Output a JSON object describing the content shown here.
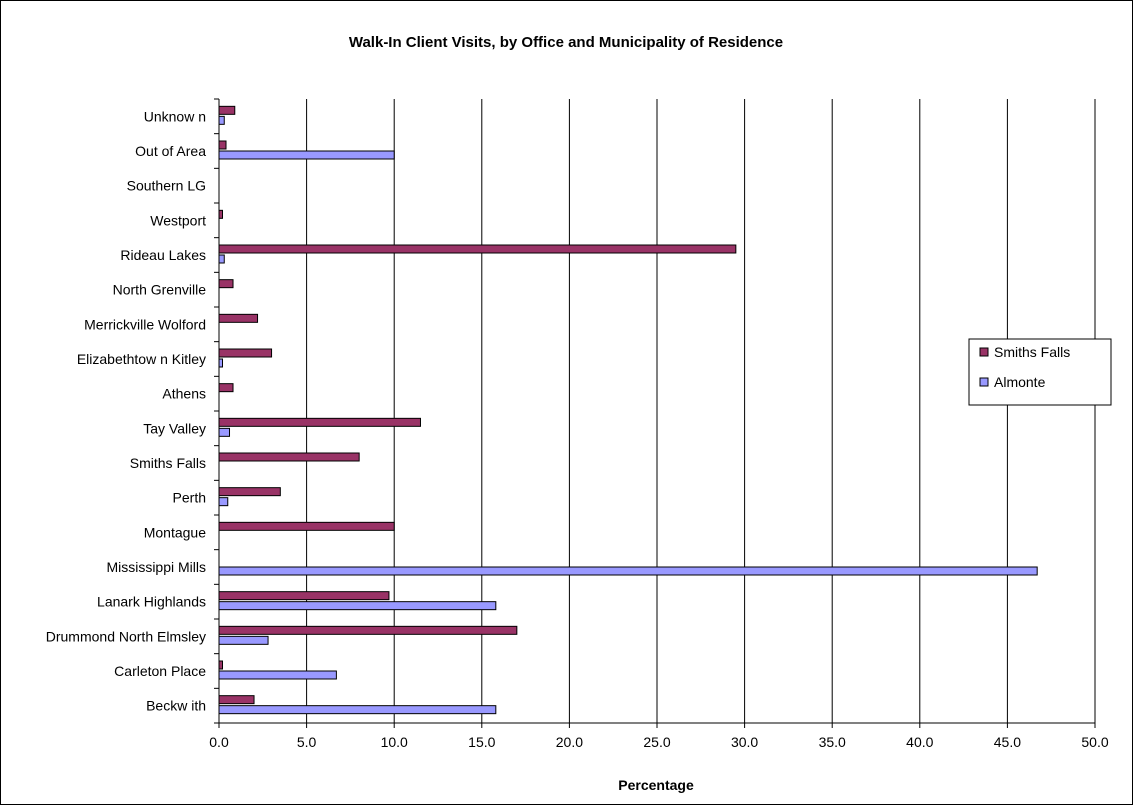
{
  "chart_data": {
    "type": "bar",
    "orientation": "horizontal",
    "title": "Walk-In Client Visits, by Office and Municipality of Residence",
    "xlabel": "Percentage",
    "ylabel": "",
    "xlim": [
      0,
      50
    ],
    "x_ticks": [
      "0.0",
      "5.0",
      "10.0",
      "15.0",
      "20.0",
      "25.0",
      "30.0",
      "35.0",
      "40.0",
      "45.0",
      "50.0"
    ],
    "x_tick_values": [
      0,
      5,
      10,
      15,
      20,
      25,
      30,
      35,
      40,
      45,
      50
    ],
    "grid": "vertical",
    "legend_position": "right",
    "categories": [
      "Beckw ith",
      "Carleton Place",
      "Drummond North Elmsley",
      "Lanark Highlands",
      "Mississippi Mills",
      "Montague",
      "Perth",
      "Smiths Falls",
      "Tay Valley",
      "Athens",
      "Elizabethtow n Kitley",
      "Merrickville Wolford",
      "North Grenville",
      "Rideau Lakes",
      "Westport",
      "Southern LG",
      "Out of Area",
      "Unknow n"
    ],
    "series": [
      {
        "name": "Smiths Falls",
        "color": "#993366",
        "values": [
          2.0,
          0.2,
          17.0,
          9.7,
          0.0,
          10.0,
          3.5,
          8.0,
          11.5,
          0.8,
          3.0,
          2.2,
          0.8,
          29.5,
          0.2,
          0.0,
          0.4,
          0.9
        ]
      },
      {
        "name": "Almonte",
        "color": "#9999FF",
        "values": [
          15.8,
          6.7,
          2.8,
          15.8,
          46.7,
          0.0,
          0.5,
          0.0,
          0.6,
          0.0,
          0.2,
          0.0,
          0.0,
          0.3,
          0.0,
          0.0,
          10.0,
          0.3
        ]
      }
    ]
  }
}
